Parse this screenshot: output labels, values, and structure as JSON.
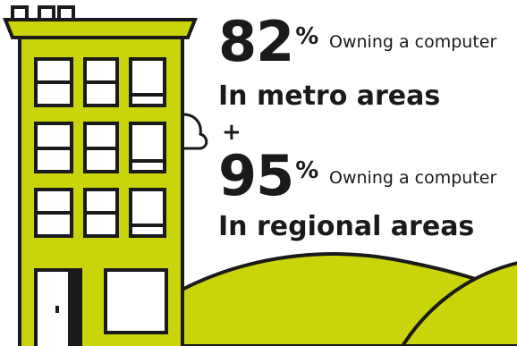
{
  "colors": {
    "accent": "#c9d40a",
    "outline": "#1a1a1a",
    "background": "#ffffff"
  },
  "metro": {
    "value": "82",
    "percent_sign": "%",
    "label": "Owning a computer",
    "area": "In metro areas"
  },
  "separator": "+",
  "regional": {
    "value": "95",
    "percent_sign": "%",
    "label": "Owning a computer",
    "area": "In regional areas"
  },
  "icons": [
    "building-icon",
    "hill-shape",
    "cloud-icon"
  ]
}
